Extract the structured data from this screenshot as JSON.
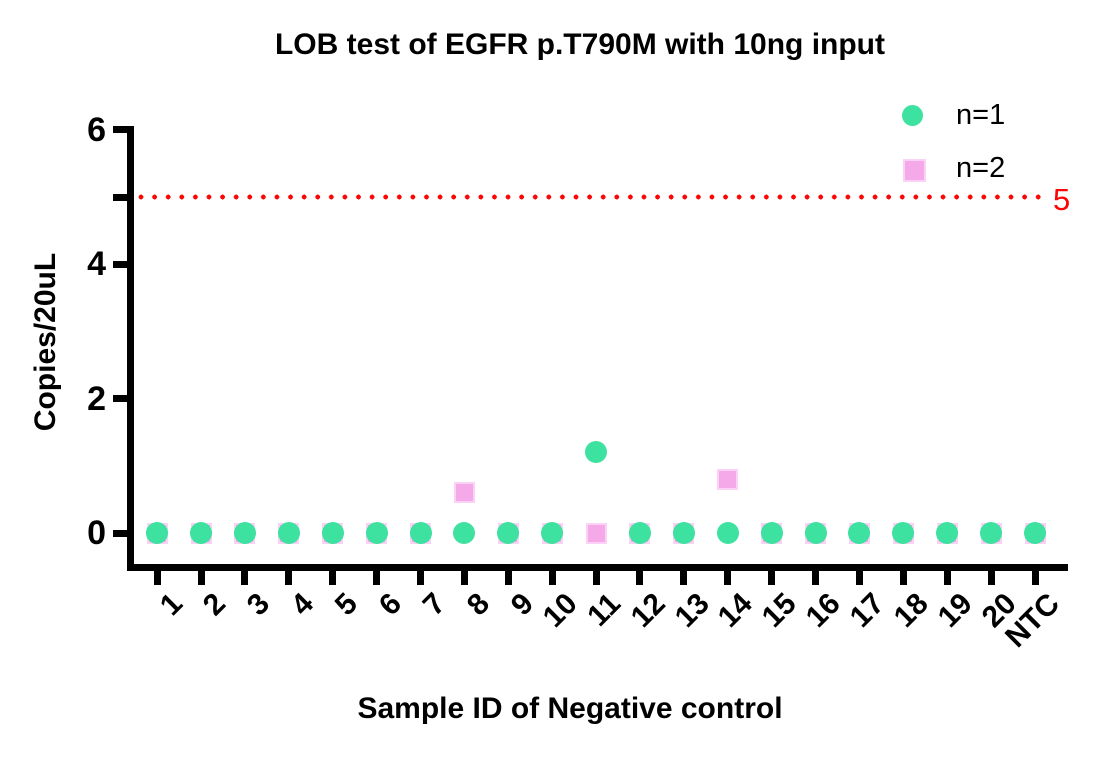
{
  "title": "LOB test of EGFR p.T790M with 10ng input",
  "chart_data": {
    "type": "scatter",
    "title": "LOB test of EGFR p.T790M with 10ng input",
    "xlabel": "Sample ID of Negative control",
    "ylabel": "Copies/20uL",
    "categories": [
      "1",
      "2",
      "3",
      "4",
      "5",
      "6",
      "7",
      "8",
      "9",
      "10",
      "11",
      "12",
      "13",
      "14",
      "15",
      "16",
      "17",
      "18",
      "19",
      "20",
      "NTC"
    ],
    "series": [
      {
        "name": "n=1",
        "marker": "circle",
        "color": "#3ee2a0",
        "values": [
          0,
          0,
          0,
          0,
          0,
          0,
          0,
          0,
          0,
          0,
          1.2,
          0,
          0,
          0,
          0,
          0,
          0,
          0,
          0,
          0,
          0
        ]
      },
      {
        "name": "n=2",
        "marker": "square",
        "color": "#f5a9e9",
        "values": [
          0,
          0,
          0,
          0,
          0,
          0,
          0,
          0.6,
          0,
          0,
          0,
          0,
          0,
          0.8,
          0,
          0,
          0,
          0,
          0,
          0,
          0
        ]
      }
    ],
    "threshold": {
      "value": 5,
      "label": "5",
      "color": "#fb0505",
      "style": "dotted"
    },
    "ylim": [
      0,
      6
    ],
    "yticks": [
      0,
      2,
      4,
      6
    ],
    "extra_unlabeled_ytick": 5,
    "grid": false,
    "legend_position": "top-right"
  }
}
